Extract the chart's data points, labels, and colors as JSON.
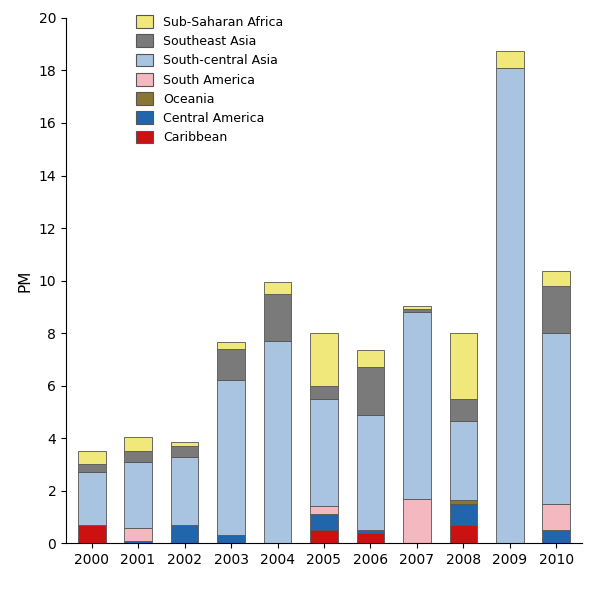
{
  "years": [
    2000,
    2001,
    2002,
    2003,
    2004,
    2005,
    2006,
    2007,
    2008,
    2009,
    2010
  ],
  "regions": [
    "Caribbean",
    "Central America",
    "South America",
    "Oceania",
    "South-central Asia",
    "Southeast Asia",
    "Sub-Saharan Africa"
  ],
  "colors": {
    "Caribbean": "#cc1111",
    "Central America": "#2166ac",
    "South America": "#f4b8c0",
    "Oceania": "#8b7536",
    "South-central Asia": "#a8c4e0",
    "Southeast Asia": "#7a7a7a",
    "Sub-Saharan Africa": "#f0e87a"
  },
  "data": {
    "Caribbean": [
      0.7,
      0.0,
      0.0,
      0.0,
      0.0,
      0.5,
      0.4,
      0.0,
      0.7,
      0.0,
      0.0
    ],
    "Central America": [
      0.0,
      0.1,
      0.7,
      0.3,
      0.0,
      0.6,
      0.1,
      0.0,
      0.8,
      0.0,
      0.5
    ],
    "South America": [
      0.0,
      0.5,
      0.0,
      0.0,
      0.0,
      0.3,
      0.0,
      1.7,
      0.0,
      0.0,
      1.0
    ],
    "Oceania": [
      0.0,
      0.0,
      0.0,
      0.0,
      0.0,
      0.0,
      0.0,
      0.0,
      0.15,
      0.0,
      0.0
    ],
    "South-central Asia": [
      2.0,
      2.5,
      2.6,
      5.9,
      7.7,
      4.1,
      4.4,
      7.1,
      3.0,
      18.1,
      6.5
    ],
    "Southeast Asia": [
      0.3,
      0.4,
      0.4,
      1.2,
      1.8,
      0.5,
      1.8,
      0.1,
      0.85,
      0.0,
      1.8
    ],
    "Sub-Saharan Africa": [
      0.5,
      0.55,
      0.15,
      0.25,
      0.45,
      2.0,
      0.65,
      0.15,
      2.5,
      0.65,
      0.55
    ]
  },
  "ylim": [
    0,
    20
  ],
  "yticks": [
    0,
    2,
    4,
    6,
    8,
    10,
    12,
    14,
    16,
    18,
    20
  ],
  "ylabel": "PM",
  "bar_width": 0.6,
  "edge_color": "#555555",
  "edge_width": 0.6,
  "background_color": "#ffffff",
  "legend_order": [
    "Sub-Saharan Africa",
    "Southeast Asia",
    "South-central Asia",
    "South America",
    "Oceania",
    "Central America",
    "Caribbean"
  ],
  "figsize": [
    6.0,
    5.97
  ],
  "dpi": 100
}
